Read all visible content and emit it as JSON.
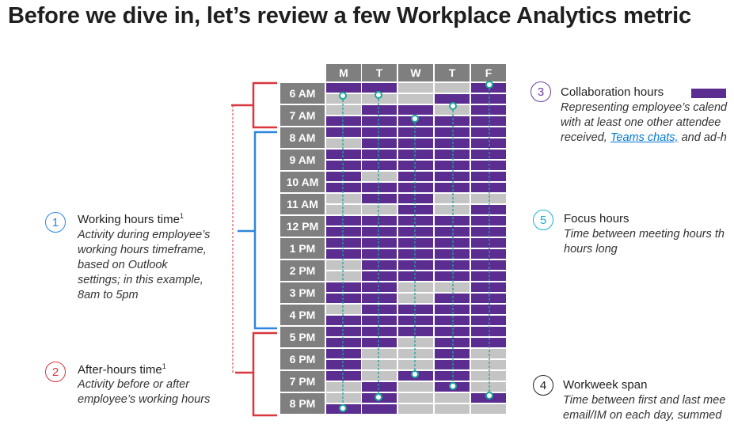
{
  "title": "Before we dive in, let’s review a few Workplace Analytics metric",
  "days": [
    "M",
    "T",
    "W",
    "T",
    "F"
  ],
  "hours": [
    "6 AM",
    "7 AM",
    "8 AM",
    "9 AM",
    "10 AM",
    "11 AM",
    "12 PM",
    "1 PM",
    "2 PM",
    "3 PM",
    "4 PM",
    "5 PM",
    "6 PM",
    "7 PM",
    "8 PM"
  ],
  "annotations": {
    "working": {
      "number": "1",
      "title": "Working hours time",
      "sup": "1",
      "desc": [
        "Activity during employee’s",
        "working hours timeframe,",
        "based on Outlook",
        "settings; in this example,",
        "8am to 5pm"
      ]
    },
    "after": {
      "number": "2",
      "title": "After-hours time",
      "sup": "1",
      "desc": [
        "Activity before or after",
        "employee’s working hours"
      ]
    },
    "collab": {
      "number": "3",
      "title": "Collaboration hours",
      "desc1": "Representing employee’s calend",
      "desc2": "with at least one other attendee",
      "desc3_pre": "received, ",
      "desc3_link": "Teams chats,",
      "desc3_post": " and ad-h"
    },
    "span": {
      "number": "4",
      "title": "Workweek span",
      "desc": [
        "Time between first and last mee",
        "email/IM on each day, summed"
      ]
    },
    "focus": {
      "number": "5",
      "title": "Focus hours",
      "desc": [
        "Time between meeting hours th",
        "hours long"
      ]
    }
  },
  "colors": {
    "busy": "#5c2d91",
    "free": "#c4c4c4",
    "header": "#7f7f7f",
    "working": "#2e86de",
    "after": "#d9363e",
    "collab": "#6b3fa0",
    "focus": "#1ab0d9",
    "span": "#222222",
    "marker": "#1aa898"
  }
}
